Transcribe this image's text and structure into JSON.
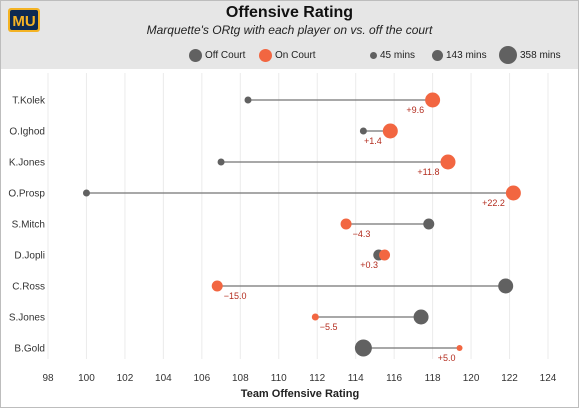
{
  "header": {
    "title": "Offensive Rating",
    "subtitle": "Marquette's ORtg with each player on vs. off the court",
    "logo_text": "MU"
  },
  "legend": {
    "off_label": "Off Court",
    "on_label": "On Court",
    "size_labels": [
      "45 mins",
      "143 mins",
      "358 mins"
    ]
  },
  "colors": {
    "off": "#616161",
    "on": "#f26641",
    "line": "#757575",
    "delta": "#b32c1e",
    "logo_gold": "#f4b324",
    "logo_navy": "#0d2a52"
  },
  "chart_data": {
    "type": "dumbbell",
    "xlabel": "Team Offensive Rating",
    "xlim": [
      98,
      124
    ],
    "xticks": [
      98,
      100,
      102,
      104,
      106,
      108,
      110,
      112,
      114,
      116,
      118,
      120,
      122,
      124
    ],
    "players": [
      {
        "name": "T.Kolek",
        "off": 108.4,
        "on": 118.0,
        "delta": "+9.6",
        "on_size": "large",
        "off_size": "small"
      },
      {
        "name": "O.Ighod",
        "off": 114.4,
        "on": 115.8,
        "delta": "+1.4",
        "on_size": "large",
        "off_size": "small"
      },
      {
        "name": "K.Jones",
        "off": 107.0,
        "on": 118.8,
        "delta": "+11.8",
        "on_size": "large",
        "off_size": "small"
      },
      {
        "name": "O.Prosp",
        "off": 100.0,
        "on": 122.2,
        "delta": "+22.2",
        "on_size": "large",
        "off_size": "small"
      },
      {
        "name": "S.Mitch",
        "off": 117.8,
        "on": 113.5,
        "delta": "−4.3",
        "on_size": "medium",
        "off_size": "medium"
      },
      {
        "name": "D.Jopli",
        "off": 115.2,
        "on": 115.5,
        "delta": "+0.3",
        "on_size": "medium",
        "off_size": "medium"
      },
      {
        "name": "C.Ross",
        "off": 121.8,
        "on": 106.8,
        "delta": "−15.0",
        "on_size": "medium",
        "off_size": "large"
      },
      {
        "name": "S.Jones",
        "off": 117.4,
        "on": 111.9,
        "delta": "−5.5",
        "on_size": "small",
        "off_size": "large"
      },
      {
        "name": "B.Gold",
        "off": 114.4,
        "on": 119.4,
        "delta": "+5.0",
        "on_size": "tiny",
        "off_size": "xlarge"
      }
    ]
  }
}
